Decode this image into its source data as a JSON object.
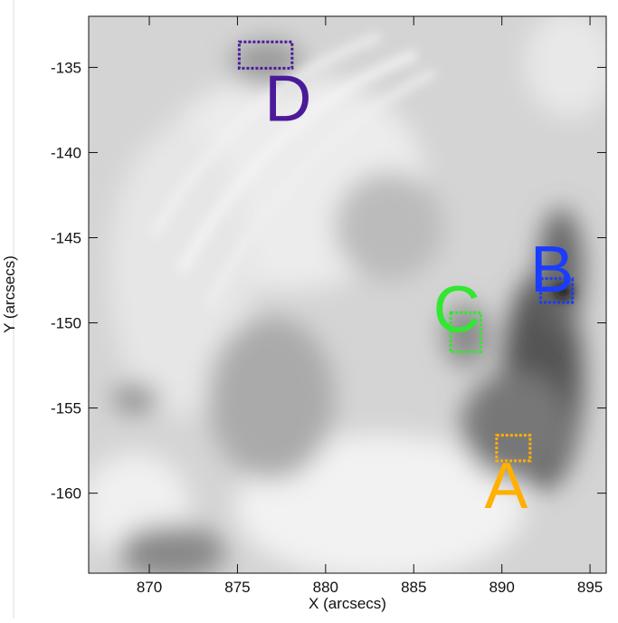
{
  "chart_data": {
    "type": "image",
    "xlabel": "X (arcsecs)",
    "ylabel": "Y (arcsecs)",
    "xlim": [
      866.56,
      895.92
    ],
    "ylim": [
      -164.7,
      -132.0
    ],
    "xticks": [
      870,
      875,
      880,
      885,
      890,
      895
    ],
    "yticks": [
      -135,
      -140,
      -145,
      -150,
      -155,
      -160
    ],
    "regions": [
      {
        "name": "D",
        "color": "#4b1a9a",
        "x": [
          875.1,
          878.1
        ],
        "y": [
          -133.5,
          -135.05
        ]
      },
      {
        "name": "B",
        "color": "#1a3cff",
        "x": [
          892.2,
          894.0
        ],
        "y": [
          -147.4,
          -148.8
        ]
      },
      {
        "name": "C",
        "color": "#33e633",
        "x": [
          887.1,
          888.8
        ],
        "y": [
          -149.4,
          -151.7
        ]
      },
      {
        "name": "A",
        "color": "#ffb000",
        "x": [
          889.7,
          891.6
        ],
        "y": [
          -156.6,
          -158.1
        ]
      }
    ]
  }
}
